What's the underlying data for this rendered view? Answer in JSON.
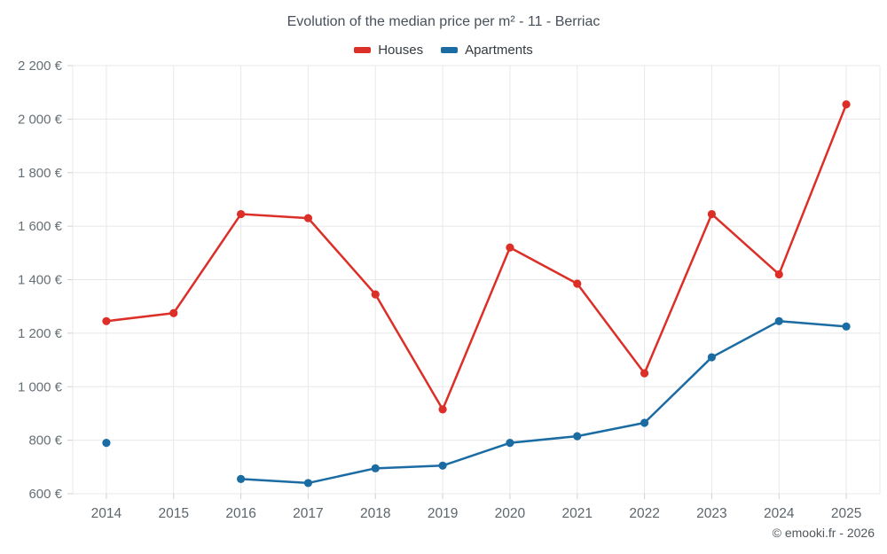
{
  "title": "Evolution of the median price per m² - 11 - Berriac",
  "legend": [
    {
      "label": "Houses",
      "color": "#db2f27"
    },
    {
      "label": "Apartments",
      "color": "#1b6ca3"
    }
  ],
  "footer": "© emooki.fr - 2026",
  "chart_data": {
    "type": "line",
    "title": "Evolution of the median price per m² - 11 - Berriac",
    "x": [
      2014,
      2015,
      2016,
      2017,
      2018,
      2019,
      2020,
      2021,
      2022,
      2023,
      2024,
      2025
    ],
    "series": [
      {
        "name": "Houses",
        "color": "#db2f27",
        "values": [
          1245,
          1275,
          1645,
          1630,
          1345,
          915,
          1520,
          1385,
          1050,
          1645,
          1420,
          2055
        ]
      },
      {
        "name": "Apartments",
        "color": "#1b6ca3",
        "values": [
          790,
          null,
          655,
          640,
          695,
          705,
          790,
          815,
          865,
          1110,
          1245,
          1225
        ]
      }
    ],
    "ylabel": "",
    "xlabel": "",
    "ylim": [
      600,
      2200
    ],
    "ytick_step": 200,
    "ytick_labels": [
      "600 €",
      "800 €",
      "1 000 €",
      "1 200 €",
      "1 400 €",
      "1 600 €",
      "1 800 €",
      "2 000 €",
      "2 200 €"
    ],
    "grid": true,
    "legend_position": "top",
    "currency_suffix": "€"
  }
}
